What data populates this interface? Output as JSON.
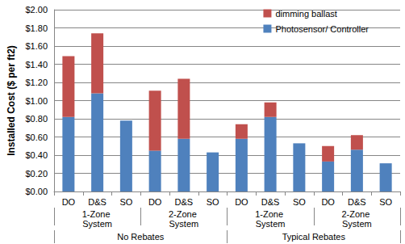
{
  "chart_data": {
    "type": "bar",
    "stacked": true,
    "grid": true,
    "legend": "top-right",
    "y_label": "Installed Cost ($ per ft2)",
    "categories": [
      [
        "No Rebates",
        "1-Zone System",
        "DO"
      ],
      [
        "No Rebates",
        "1-Zone System",
        "D&S"
      ],
      [
        "No Rebates",
        "1-Zone System",
        "SO"
      ],
      [
        "No Rebates",
        "2-Zone System",
        "DO"
      ],
      [
        "No Rebates",
        "2-Zone System",
        "D&S"
      ],
      [
        "No Rebates",
        "2-Zone System",
        "SO"
      ],
      [
        "Typical Rebates",
        "1-Zone System",
        "DO"
      ],
      [
        "Typical Rebates",
        "1-Zone System",
        "D&S"
      ],
      [
        "Typical Rebates",
        "1-Zone System",
        "SO"
      ],
      [
        "Typical Rebates",
        "2-Zone System",
        "DO"
      ],
      [
        "Typical Rebates",
        "2-Zone System",
        "D&S"
      ],
      [
        "Typical Rebates",
        "2-Zone System",
        "SO"
      ]
    ],
    "series": [
      {
        "name": "Photosensor/ Controller",
        "color": "#4f81bd",
        "values": [
          0.82,
          1.08,
          0.78,
          0.45,
          0.58,
          0.43,
          0.58,
          0.82,
          0.53,
          0.33,
          0.46,
          0.31
        ]
      },
      {
        "name": "dimming ballast",
        "color": "#c0504d",
        "values": [
          0.67,
          0.66,
          null,
          0.66,
          0.66,
          null,
          0.16,
          0.16,
          null,
          0.17,
          0.16,
          null
        ]
      }
    ],
    "ylim": [
      0,
      2
    ],
    "yticks": [
      {
        "value": 0,
        "label": "$0.00"
      },
      {
        "value": 0.2,
        "label": "$0.20"
      },
      {
        "value": 0.4,
        "label": "$0.40"
      },
      {
        "value": 0.6,
        "label": "$0.60"
      },
      {
        "value": 0.8,
        "label": "$0.80"
      },
      {
        "value": 1,
        "label": "$1.00"
      },
      {
        "value": 1.2,
        "label": "$1.20"
      },
      {
        "value": 1.4,
        "label": "$1.40"
      },
      {
        "value": 1.6,
        "label": "$1.60"
      },
      {
        "value": 1.8,
        "label": "$1.80"
      },
      {
        "value": 2,
        "label": "$2.00"
      }
    ]
  }
}
